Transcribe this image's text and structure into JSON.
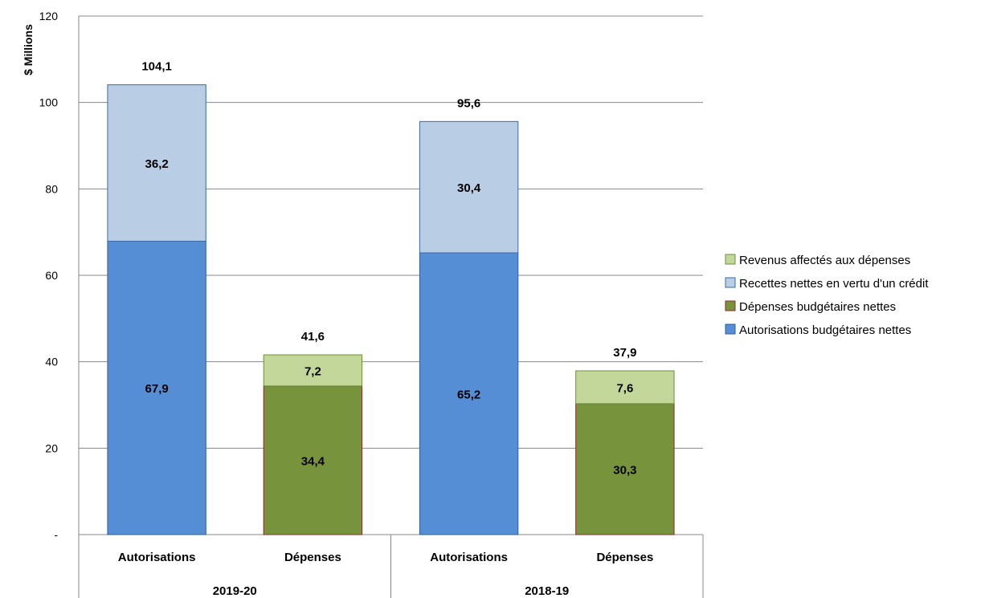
{
  "chart_data": {
    "type": "bar",
    "stacked": true,
    "ylabel": "$ Millions",
    "ylim": [
      0,
      120
    ],
    "yticks": [
      0,
      20,
      40,
      60,
      80,
      100,
      120
    ],
    "ytick_labels": [
      "-",
      "20",
      "40",
      "60",
      "80",
      "100",
      "120"
    ],
    "grid": true,
    "legend_position": "right",
    "groups": [
      {
        "label": "2019-20",
        "categories": [
          "Autorisations",
          "Dépenses"
        ]
      },
      {
        "label": "2018-19",
        "categories": [
          "Autorisations",
          "Dépenses"
        ]
      }
    ],
    "bars": [
      {
        "group": "2019-20",
        "category": "Autorisations",
        "total": 104.1,
        "total_label": "104,1",
        "segments": [
          {
            "series": "Autorisations budgétaires nettes",
            "value": 67.9,
            "label": "67,9"
          },
          {
            "series": "Recettes nettes en vertu d'un crédit",
            "value": 36.2,
            "label": "36,2"
          }
        ]
      },
      {
        "group": "2019-20",
        "category": "Dépenses",
        "total": 41.6,
        "total_label": "41,6",
        "segments": [
          {
            "series": "Dépenses budgétaires nettes",
            "value": 34.4,
            "label": "34,4"
          },
          {
            "series": "Revenus affectés aux dépenses",
            "value": 7.2,
            "label": "7,2"
          }
        ]
      },
      {
        "group": "2018-19",
        "category": "Autorisations",
        "total": 95.6,
        "total_label": "95,6",
        "segments": [
          {
            "series": "Autorisations budgétaires nettes",
            "value": 65.2,
            "label": "65,2"
          },
          {
            "series": "Recettes nettes en vertu d'un crédit",
            "value": 30.4,
            "label": "30,4"
          }
        ]
      },
      {
        "group": "2018-19",
        "category": "Dépenses",
        "total": 37.9,
        "total_label": "37,9",
        "segments": [
          {
            "series": "Dépenses budgétaires nettes",
            "value": 30.3,
            "label": "30,3"
          },
          {
            "series": "Revenus affectés aux dépenses",
            "value": 7.6,
            "label": "7,6"
          }
        ]
      }
    ],
    "series": [
      {
        "name": "Revenus affectés aux dépenses",
        "color": "#c4d79b",
        "border": "#6e8f3c"
      },
      {
        "name": "Recettes nettes en vertu d'un crédit",
        "color": "#b9cde5",
        "border": "#3c6aa8"
      },
      {
        "name": "Dépenses budgétaires nettes",
        "color": "#77933c",
        "border": "#8b2a2a"
      },
      {
        "name": "Autorisations budgétaires nettes",
        "color": "#558ed5",
        "border": "#2f5f9e"
      }
    ]
  }
}
